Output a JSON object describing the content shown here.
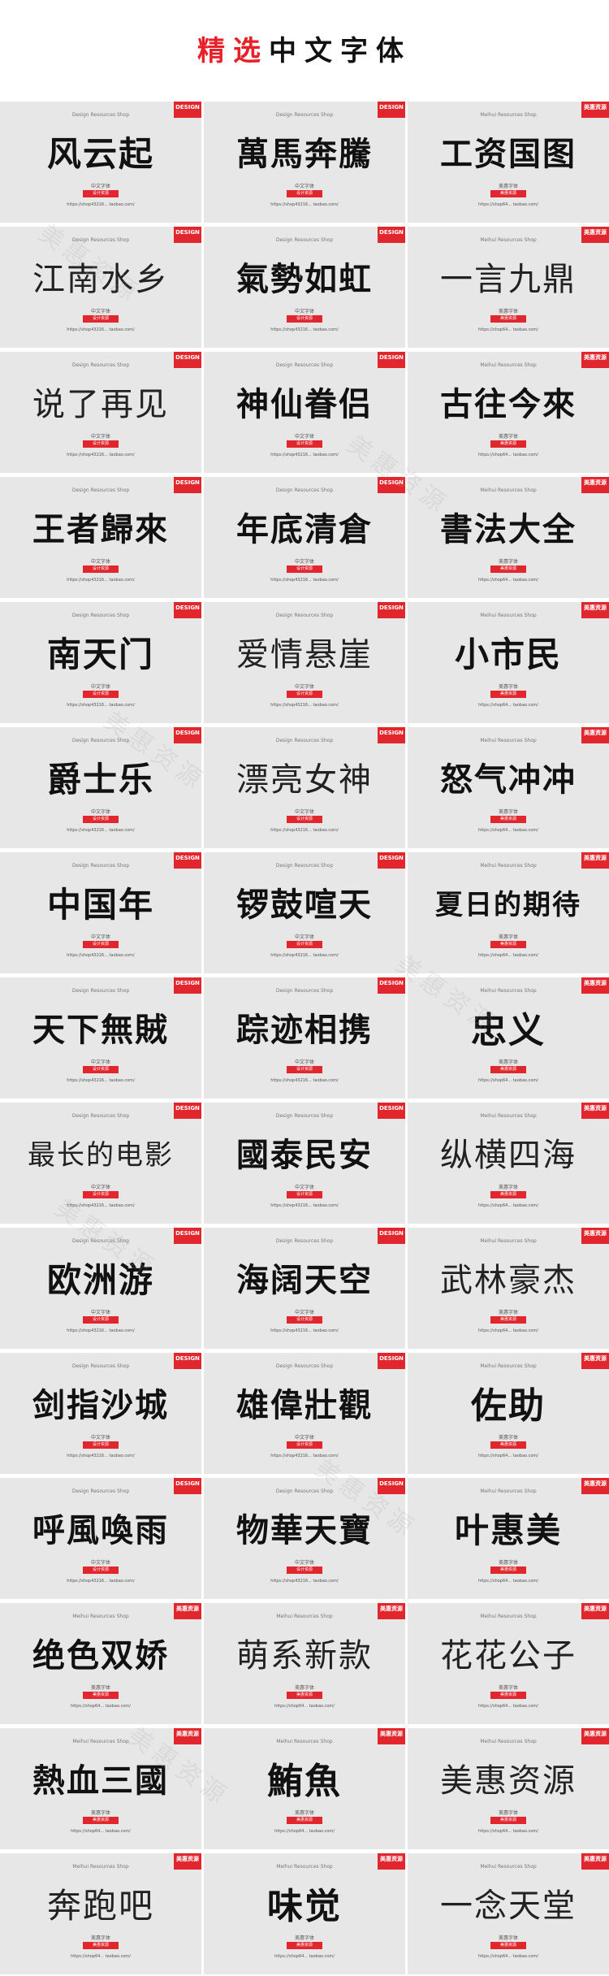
{
  "header": {
    "title_accent": "精选",
    "title_rest": "中文字体"
  },
  "watermark": "美惠资源",
  "cards": [
    {
      "name": "风云起",
      "shop": "Design Resources Shop",
      "sub": "中文字体",
      "tag": "设计资源",
      "url": "https://shop43216... taobao.com/",
      "brand": "DESIGN"
    },
    {
      "name": "萬馬奔騰",
      "shop": "Design Resources Shop",
      "sub": "中文字体",
      "tag": "设计资源",
      "url": "https://shop43216... taobao.com/",
      "brand": "DESIGN"
    },
    {
      "name": "工资国图",
      "shop": "Meihui Resources Shop",
      "sub": "美惠字体",
      "tag": "美惠资源",
      "url": "https://shop64... taobao.com/",
      "brand": "美惠资源"
    },
    {
      "name": "江南水乡",
      "shop": "Design Resources Shop",
      "sub": "中文字体",
      "tag": "设计资源",
      "url": "https://shop43216... taobao.com/",
      "brand": "DESIGN"
    },
    {
      "name": "氣勢如虹",
      "shop": "Design Resources Shop",
      "sub": "中文字体",
      "tag": "设计资源",
      "url": "https://shop43216... taobao.com/",
      "brand": "DESIGN"
    },
    {
      "name": "一言九鼎",
      "shop": "Meihui Resources Shop",
      "sub": "美惠字体",
      "tag": "美惠资源",
      "url": "https://shop64... taobao.com/",
      "brand": "美惠资源"
    },
    {
      "name": "说了再见",
      "shop": "Design Resources Shop",
      "sub": "中文字体",
      "tag": "设计资源",
      "url": "https://shop43216... taobao.com/",
      "brand": "DESIGN"
    },
    {
      "name": "神仙眷侣",
      "shop": "Design Resources Shop",
      "sub": "中文字体",
      "tag": "设计资源",
      "url": "https://shop43216... taobao.com/",
      "brand": "DESIGN"
    },
    {
      "name": "古往今來",
      "shop": "Meihui Resources Shop",
      "sub": "美惠字体",
      "tag": "美惠资源",
      "url": "https://shop64... taobao.com/",
      "brand": "美惠资源"
    },
    {
      "name": "王者歸來",
      "shop": "Design Resources Shop",
      "sub": "中文字体",
      "tag": "设计资源",
      "url": "https://shop43216... taobao.com/",
      "brand": "DESIGN"
    },
    {
      "name": "年底清倉",
      "shop": "Design Resources Shop",
      "sub": "中文字体",
      "tag": "设计资源",
      "url": "https://shop43216... taobao.com/",
      "brand": "DESIGN"
    },
    {
      "name": "書法大全",
      "shop": "Meihui Resources Shop",
      "sub": "美惠字体",
      "tag": "美惠资源",
      "url": "https://shop64... taobao.com/",
      "brand": "美惠资源"
    },
    {
      "name": "南天门",
      "shop": "Design Resources Shop",
      "sub": "中文字体",
      "tag": "设计资源",
      "url": "https://shop43216... taobao.com/",
      "brand": "DESIGN"
    },
    {
      "name": "爱情悬崖",
      "shop": "Design Resources Shop",
      "sub": "中文字体",
      "tag": "设计资源",
      "url": "https://shop43216... taobao.com/",
      "brand": "DESIGN"
    },
    {
      "name": "小市民",
      "shop": "Meihui Resources Shop",
      "sub": "美惠字体",
      "tag": "美惠资源",
      "url": "https://shop64... taobao.com/",
      "brand": "美惠资源"
    },
    {
      "name": "爵士乐",
      "shop": "Design Resources Shop",
      "sub": "中文字体",
      "tag": "设计资源",
      "url": "https://shop43216... taobao.com/",
      "brand": "DESIGN"
    },
    {
      "name": "漂亮女神",
      "shop": "Design Resources Shop",
      "sub": "中文字体",
      "tag": "设计资源",
      "url": "https://shop43216... taobao.com/",
      "brand": "DESIGN"
    },
    {
      "name": "怒气冲冲",
      "shop": "Meihui Resources Shop",
      "sub": "美惠字体",
      "tag": "美惠资源",
      "url": "https://shop64... taobao.com/",
      "brand": "美惠资源"
    },
    {
      "name": "中国年",
      "shop": "Design Resources Shop",
      "sub": "中文字体",
      "tag": "设计资源",
      "url": "https://shop43216... taobao.com/",
      "brand": "DESIGN"
    },
    {
      "name": "锣鼓喧天",
      "shop": "Design Resources Shop",
      "sub": "中文字体",
      "tag": "设计资源",
      "url": "https://shop43216... taobao.com/",
      "brand": "DESIGN"
    },
    {
      "name": "夏日的期待",
      "shop": "Meihui Resources Shop",
      "sub": "美惠字体",
      "tag": "美惠资源",
      "url": "https://shop64... taobao.com/",
      "brand": "美惠资源"
    },
    {
      "name": "天下無賊",
      "shop": "Design Resources Shop",
      "sub": "中文字体",
      "tag": "设计资源",
      "url": "https://shop43216... taobao.com/",
      "brand": "DESIGN"
    },
    {
      "name": "踪迹相携",
      "shop": "Design Resources Shop",
      "sub": "中文字体",
      "tag": "设计资源",
      "url": "https://shop43216... taobao.com/",
      "brand": "DESIGN"
    },
    {
      "name": "忠义",
      "shop": "Meihui Resources Shop",
      "sub": "美惠字体",
      "tag": "美惠资源",
      "url": "https://shop64... taobao.com/",
      "brand": "美惠资源"
    },
    {
      "name": "最长的电影",
      "shop": "Design Resources Shop",
      "sub": "中文字体",
      "tag": "设计资源",
      "url": "https://shop43216... taobao.com/",
      "brand": "DESIGN"
    },
    {
      "name": "國泰民安",
      "shop": "Design Resources Shop",
      "sub": "中文字体",
      "tag": "设计资源",
      "url": "https://shop43216... taobao.com/",
      "brand": "DESIGN"
    },
    {
      "name": "纵横四海",
      "shop": "Meihui Resources Shop",
      "sub": "美惠字体",
      "tag": "美惠资源",
      "url": "https://shop64... taobao.com/",
      "brand": "美惠资源"
    },
    {
      "name": "欧洲游",
      "shop": "Design Resources Shop",
      "sub": "中文字体",
      "tag": "设计资源",
      "url": "https://shop43216... taobao.com/",
      "brand": "DESIGN"
    },
    {
      "name": "海阔天空",
      "shop": "Design Resources Shop",
      "sub": "中文字体",
      "tag": "设计资源",
      "url": "https://shop43216... taobao.com/",
      "brand": "DESIGN"
    },
    {
      "name": "武林豪杰",
      "shop": "Meihui Resources Shop",
      "sub": "美惠字体",
      "tag": "美惠资源",
      "url": "https://shop64... taobao.com/",
      "brand": "美惠资源"
    },
    {
      "name": "剑指沙城",
      "shop": "Design Resources Shop",
      "sub": "中文字体",
      "tag": "设计资源",
      "url": "https://shop43216... taobao.com/",
      "brand": "DESIGN"
    },
    {
      "name": "雄偉壯觀",
      "shop": "Design Resources Shop",
      "sub": "中文字体",
      "tag": "设计资源",
      "url": "https://shop43216... taobao.com/",
      "brand": "DESIGN"
    },
    {
      "name": "佐助",
      "shop": "Meihui Resources Shop",
      "sub": "美惠字体",
      "tag": "美惠资源",
      "url": "https://shop64... taobao.com/",
      "brand": "美惠资源"
    },
    {
      "name": "呼風喚雨",
      "shop": "Design Resources Shop",
      "sub": "中文字体",
      "tag": "设计资源",
      "url": "https://shop43216... taobao.com/",
      "brand": "DESIGN"
    },
    {
      "name": "物華天寶",
      "shop": "Design Resources Shop",
      "sub": "中文字体",
      "tag": "设计资源",
      "url": "https://shop43216... taobao.com/",
      "brand": "DESIGN"
    },
    {
      "name": "叶惠美",
      "shop": "Meihui Resources Shop",
      "sub": "美惠字体",
      "tag": "美惠资源",
      "url": "https://shop64... taobao.com/",
      "brand": "美惠资源"
    },
    {
      "name": "绝色双娇",
      "shop": "Meihui Resources Shop",
      "sub": "美惠字体",
      "tag": "美惠资源",
      "url": "https://shop64... taobao.com/",
      "brand": "美惠资源"
    },
    {
      "name": "萌系新款",
      "shop": "Meihui Resources Shop",
      "sub": "美惠字体",
      "tag": "美惠资源",
      "url": "https://shop64... taobao.com/",
      "brand": "美惠资源"
    },
    {
      "name": "花花公子",
      "shop": "Meihui Resources Shop",
      "sub": "美惠字体",
      "tag": "美惠资源",
      "url": "https://shop64... taobao.com/",
      "brand": "美惠资源"
    },
    {
      "name": "熱血三國",
      "shop": "Meihui Resources Shop",
      "sub": "美惠字体",
      "tag": "美惠资源",
      "url": "https://shop64... taobao.com/",
      "brand": "美惠资源"
    },
    {
      "name": "鮪魚",
      "shop": "Meihui Resources Shop",
      "sub": "美惠字体",
      "tag": "美惠资源",
      "url": "https://shop64... taobao.com/",
      "brand": "美惠资源"
    },
    {
      "name": "美惠资源",
      "shop": "Meihui Resources Shop",
      "sub": "美惠字体",
      "tag": "美惠资源",
      "url": "https://shop64... taobao.com/",
      "brand": "美惠资源"
    },
    {
      "name": "奔跑吧",
      "shop": "Meihui Resources Shop",
      "sub": "美惠字体",
      "tag": "美惠资源",
      "url": "https://shop64... taobao.com/",
      "brand": "美惠资源"
    },
    {
      "name": "味觉",
      "shop": "Meihui Resources Shop",
      "sub": "美惠字体",
      "tag": "美惠资源",
      "url": "https://shop64... taobao.com/",
      "brand": "美惠资源"
    },
    {
      "name": "一念天堂",
      "shop": "Meihui Resources Shop",
      "sub": "美惠字体",
      "tag": "美惠资源",
      "url": "https://shop64... taobao.com/",
      "brand": "美惠资源"
    }
  ],
  "colors": {
    "accent": "#e8202a",
    "card_bg": "#e7e7e7",
    "text": "#111111"
  }
}
